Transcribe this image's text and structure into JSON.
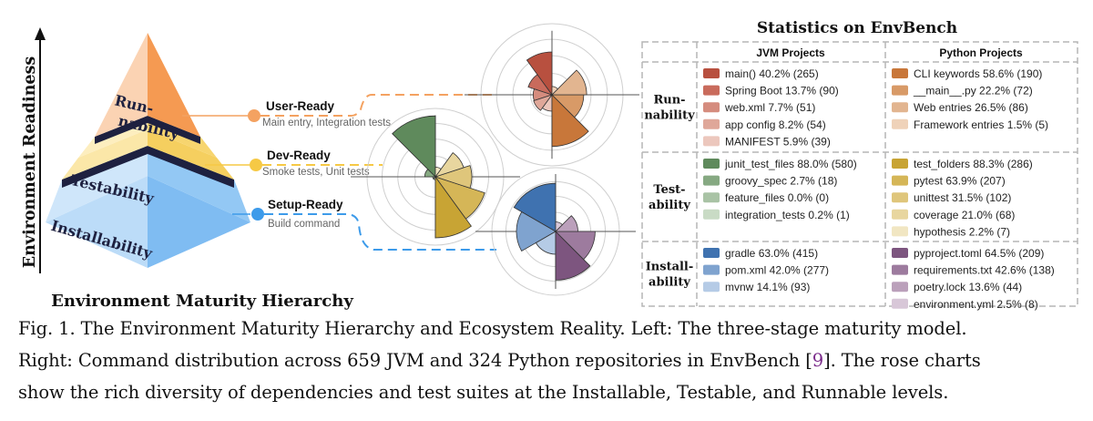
{
  "colors": {
    "runnability": "#f4a261",
    "testability": "#f6d365",
    "installability": "#8ec5f4",
    "stage_dot_orange": "#f4a261",
    "stage_dot_yellow": "#f6c945",
    "stage_dot_blue": "#3d9bea",
    "divider": "#1e2140"
  },
  "pyramid": {
    "y_axis_label": "Environment Readiness",
    "title": "Environment Maturity Hierarchy",
    "levels": [
      {
        "label_line1": "Run-",
        "label_line2": "nability"
      },
      {
        "label": "Testability"
      },
      {
        "label": "Installability"
      }
    ]
  },
  "stages": [
    {
      "name": "User-Ready",
      "desc": "Main entry, Integration tests"
    },
    {
      "name": "Dev-Ready",
      "desc": "Smoke tests, Unit tests"
    },
    {
      "name": "Setup-Ready",
      "desc": "Build command"
    }
  ],
  "stats": {
    "title": "Statistics on EnvBench",
    "col_headers": [
      "JVM Projects",
      "Python Projects"
    ],
    "rows": [
      {
        "label_line1": "Run-",
        "label_line2": "nability",
        "jvm": [
          {
            "text": "main() 40.2% (265)",
            "color": "#b8503f"
          },
          {
            "text": "Spring Boot 13.7% (90)",
            "color": "#c96b5c"
          },
          {
            "text": "web.xml 7.7% (51)",
            "color": "#d58c7e"
          },
          {
            "text": "app config 8.2% (54)",
            "color": "#dfa799"
          },
          {
            "text": "MANIFEST 5.9% (39)",
            "color": "#ecc7bd"
          }
        ],
        "python": [
          {
            "text": "CLI keywords 58.6% (190)",
            "color": "#c8773a"
          },
          {
            "text": "__main__.py 22.2% (72)",
            "color": "#d89a67"
          },
          {
            "text": "Web entries 26.5% (86)",
            "color": "#e2b590"
          },
          {
            "text": "Framework entries 1.5% (5)",
            "color": "#efd2b9"
          }
        ]
      },
      {
        "label_line1": "Test-",
        "label_line2": "ability",
        "jvm": [
          {
            "text": "junit_test_files 88.0% (580)",
            "color": "#5f8a5c"
          },
          {
            "text": "groovy_spec 2.7% (18)",
            "color": "#86a982"
          },
          {
            "text": "feature_files 0.0% (0)",
            "color": "#a9c3a5"
          },
          {
            "text": "integration_tests 0.2% (1)",
            "color": "#c9dbc5"
          }
        ],
        "python": [
          {
            "text": "test_folders 88.3% (286)",
            "color": "#c8a434"
          },
          {
            "text": "pytest 63.9% (207)",
            "color": "#d5b657"
          },
          {
            "text": "unittest 31.5% (102)",
            "color": "#dfc67b"
          },
          {
            "text": "coverage 21.0% (68)",
            "color": "#e8d69f"
          },
          {
            "text": "hypothesis 2.2% (7)",
            "color": "#f1e6c2"
          }
        ]
      },
      {
        "label_line1": "Install-",
        "label_line2": "ability",
        "jvm": [
          {
            "text": "gradle 63.0% (415)",
            "color": "#3f72b0"
          },
          {
            "text": "pom.xml 42.0% (277)",
            "color": "#7fa3cf"
          },
          {
            "text": "mvnw 14.1% (93)",
            "color": "#b5cbe6"
          }
        ],
        "python": [
          {
            "text": "pyproject.toml 64.5% (209)",
            "color": "#7d557f"
          },
          {
            "text": "requirements.txt 42.6% (138)",
            "color": "#9d7b9e"
          },
          {
            "text": "poetry.lock 13.6% (44)",
            "color": "#bba0bb"
          },
          {
            "text": "environment.yml 2.5% (8)",
            "color": "#d8c7d8"
          }
        ]
      }
    ]
  },
  "caption": {
    "line1": "Fig. 1.  The Environment Maturity Hierarchy and Ecosystem Reality. Left: The three-stage maturity model.",
    "line2_before": "Right: Command distribution across 659 JVM and 324 Python repositories in EnvBench [",
    "ref": "9",
    "line2_after": "]. The rose charts",
    "line3": "show the rich diversity of dependencies and test suites at the Installable, Testable, and Runnable levels."
  }
}
